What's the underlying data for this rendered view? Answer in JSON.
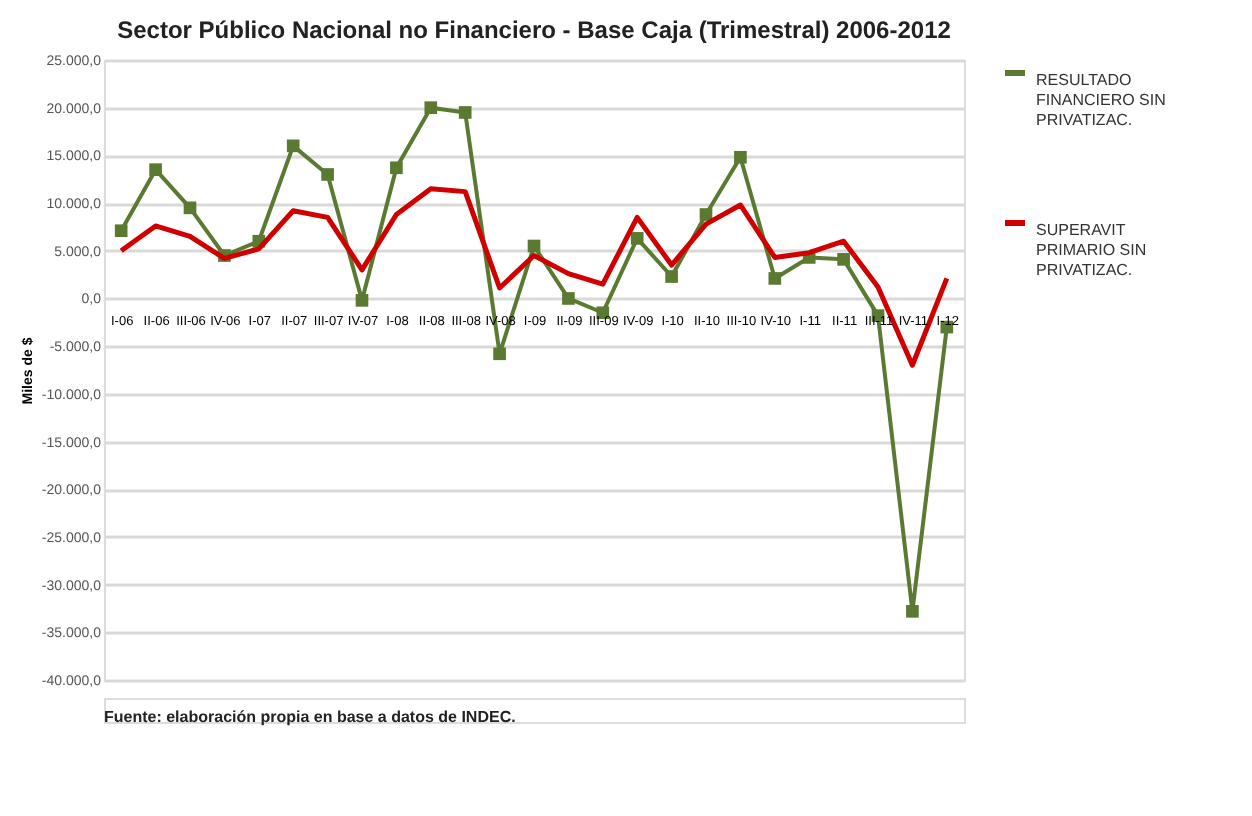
{
  "chart_data": {
    "type": "line",
    "title": "Sector Público Nacional no Financiero - Base Caja (Trimestral) 2006-2012",
    "ylabel": "Miles de $",
    "categories": [
      "I-06",
      "II-06",
      "III-06",
      "IV-06",
      "I-07",
      "II-07",
      "III-07",
      "IV-07",
      "I-08",
      "II-08",
      "III-08",
      "IV-08",
      "I-09",
      "II-09",
      "III-09",
      "IV-09",
      "I-10",
      "II-10",
      "III-10",
      "IV-10",
      "I-11",
      "II-11",
      "III-11",
      "IV-11",
      "I-12"
    ],
    "series": [
      {
        "name": "RESULTADO FINANCIERO SIN PRIVATIZAC.",
        "color": "#5a7a32",
        "marker": "square",
        "values": [
          7100,
          13500,
          9500,
          4500,
          6000,
          16000,
          13000,
          -200,
          13700,
          20000,
          19500,
          -5800,
          5500,
          0,
          -1500,
          6300,
          2300,
          8800,
          14800,
          2100,
          4300,
          4100,
          -1800,
          -32800,
          -3000
        ]
      },
      {
        "name": "SUPERAVIT PRIMARIO SIN PRIVATIZAC.",
        "color": "#d00000",
        "marker": "none",
        "values": [
          5000,
          7600,
          6500,
          4200,
          5200,
          9200,
          8500,
          3000,
          8800,
          11500,
          11200,
          1100,
          4500,
          2600,
          1500,
          8500,
          3500,
          7800,
          9800,
          4300,
          4800,
          6000,
          1200,
          -7000,
          2100
        ]
      }
    ],
    "ylim": [
      -40000,
      25000
    ],
    "yticks": [
      {
        "value": 25000,
        "label": "25.000,0"
      },
      {
        "value": 20000,
        "label": "20.000,0"
      },
      {
        "value": 15000,
        "label": "15.000,0"
      },
      {
        "value": 10000,
        "label": "10.000,0"
      },
      {
        "value": 5000,
        "label": "5.000,0"
      },
      {
        "value": 0,
        "label": "0,0"
      },
      {
        "value": -5000,
        "label": "-5.000,0"
      },
      {
        "value": -10000,
        "label": "-10.000,0"
      },
      {
        "value": -15000,
        "label": "-15.000,0"
      },
      {
        "value": -20000,
        "label": "-20.000,0"
      },
      {
        "value": -25000,
        "label": "-25.000,0"
      },
      {
        "value": -30000,
        "label": "-30.000,0"
      },
      {
        "value": -35000,
        "label": "-35.000,0"
      },
      {
        "value": -40000,
        "label": "-40.000,0"
      }
    ],
    "grid": "y",
    "legend": "right",
    "line_style": "solid",
    "annotations": [
      "Fuente: elaboración propia en base a datos de INDEC."
    ]
  }
}
